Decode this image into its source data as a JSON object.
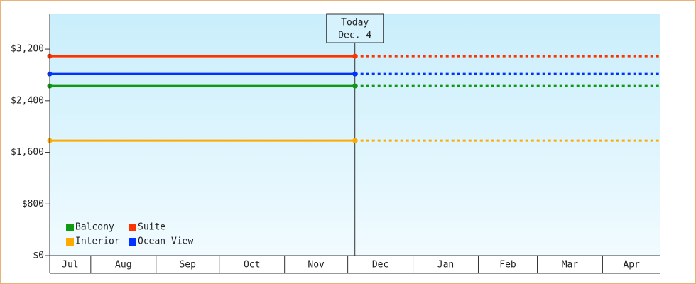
{
  "chart_data": {
    "type": "line",
    "categories": [
      "Jul",
      "Aug",
      "Sep",
      "Oct",
      "Nov",
      "Dec",
      "Jan",
      "Feb",
      "Mar",
      "Apr"
    ],
    "today": {
      "lines": [
        "Today",
        "Dec. 4"
      ]
    },
    "ylim": [
      0,
      3740
    ],
    "yticks": [
      {
        "value": 0,
        "label": "$0"
      },
      {
        "value": 800,
        "label": "$800"
      },
      {
        "value": 1600,
        "label": "$1,600"
      },
      {
        "value": 2400,
        "label": "$2,400"
      },
      {
        "value": 3200,
        "label": "$3,200"
      }
    ],
    "series": [
      {
        "name": "Balcony",
        "color": "#119911",
        "value": 2628
      },
      {
        "name": "Suite",
        "color": "#ff3300",
        "value": 3090
      },
      {
        "name": "Interior",
        "color": "#ffaa00",
        "value": 1781
      },
      {
        "name": "Ocean View",
        "color": "#0033ff",
        "value": 2815
      }
    ]
  }
}
